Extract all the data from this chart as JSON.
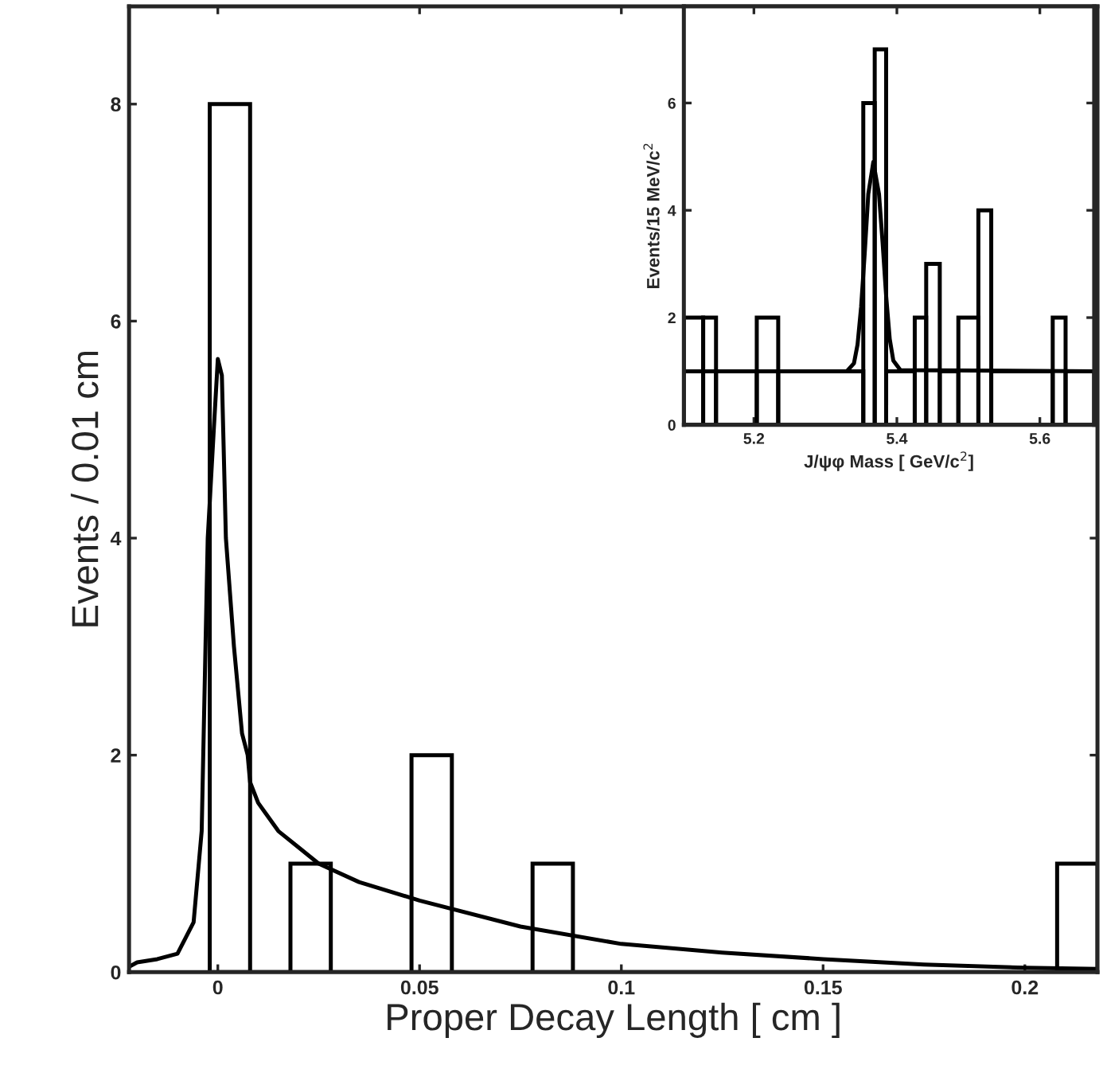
{
  "chart_data": [
    {
      "type": "histogram",
      "xlabel": "Proper Decay Length [ cm ]",
      "ylabel": "Events / 0.01 cm",
      "bins": [
        -0.002,
        0.008,
        0.018,
        0.028,
        0.038,
        0.048,
        0.058,
        0.068,
        0.078,
        0.088,
        0.098,
        0.108,
        0.118,
        0.128,
        0.138,
        0.148,
        0.158,
        0.168,
        0.178,
        0.188,
        0.198,
        0.208,
        0.218
      ],
      "values": [
        8,
        0,
        1,
        0,
        0,
        2,
        0,
        0,
        1,
        0,
        0,
        0,
        0,
        0,
        0,
        0,
        0,
        0,
        0,
        0,
        0,
        1
      ],
      "color": "#000000",
      "series": [
        {
          "type": "line",
          "color": "#000000",
          "x": [
            -0.022,
            -0.02,
            -0.015,
            -0.01,
            -0.006,
            -0.004,
            -0.0025,
            -0.001,
            0.0,
            0.001,
            0.002,
            0.004,
            0.006,
            0.0074,
            0.008,
            0.01,
            0.015,
            0.02,
            0.025,
            0.035,
            0.05,
            0.075,
            0.1,
            0.125,
            0.15,
            0.175,
            0.2,
            0.218
          ],
          "values": [
            0.05,
            0.09,
            0.12,
            0.17,
            0.46,
            1.3,
            4.0,
            5.0,
            5.65,
            5.5,
            4.0,
            3.0,
            2.2,
            2.0,
            1.75,
            1.56,
            1.3,
            1.15,
            1.0,
            0.83,
            0.66,
            0.42,
            0.26,
            0.18,
            0.12,
            0.07,
            0.04,
            0.03
          ]
        }
      ],
      "xlim": [
        -0.022,
        0.218
      ],
      "ylim": [
        0,
        8.9
      ],
      "xticks": [
        0,
        0.05,
        0.1,
        0.15,
        0.2
      ],
      "yticks": [
        0,
        2,
        4,
        6,
        8
      ],
      "grid": false,
      "legend": false
    },
    {
      "type": "histogram",
      "xlabel": "J/ψφ Mass [ GeV/c$^{2}$]",
      "ylabel": "Events/15 MeV/c$^{2}$",
      "bins": [
        5.102,
        5.129,
        5.147,
        5.204,
        5.234,
        5.353,
        5.369,
        5.385,
        5.425,
        5.441,
        5.46,
        5.486,
        5.514,
        5.532,
        5.618,
        5.636,
        5.676
      ],
      "values": [
        2,
        2,
        1,
        2,
        1,
        6,
        7,
        1,
        2,
        3,
        1,
        2,
        4,
        1,
        2,
        1
      ],
      "color": "#000000",
      "series": [
        {
          "type": "line",
          "color": "#000000",
          "x": [
            5.102,
            5.33,
            5.34,
            5.345,
            5.35,
            5.355,
            5.36,
            5.367,
            5.375,
            5.38,
            5.385,
            5.39,
            5.395,
            5.405,
            5.676
          ],
          "values": [
            1,
            1.0,
            1.15,
            1.5,
            2.2,
            3.2,
            4.3,
            4.9,
            4.3,
            3.4,
            2.4,
            1.6,
            1.2,
            1.02,
            1
          ]
        }
      ],
      "xlim": [
        5.102,
        5.676
      ],
      "ylim": [
        0,
        7.8
      ],
      "xticks": [
        5.2,
        5.4,
        5.6
      ],
      "yticks": [
        0,
        2,
        4,
        6
      ],
      "grid": false,
      "legend": false
    }
  ]
}
